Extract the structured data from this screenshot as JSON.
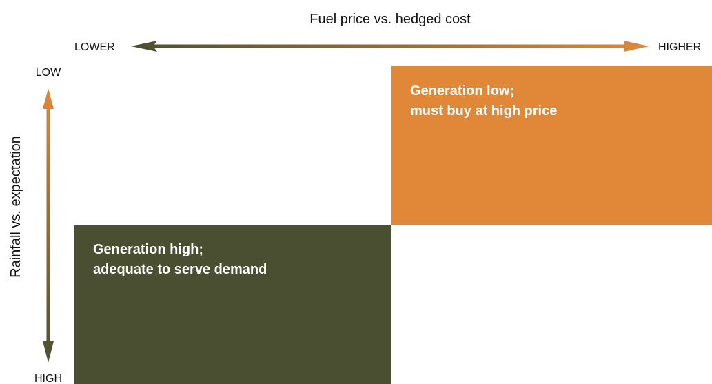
{
  "x_axis": {
    "title": "Fuel price vs. hedged cost",
    "low_label": "LOWER",
    "high_label": "HIGHER"
  },
  "y_axis": {
    "title": "Rainfall vs. expectation",
    "low_label": "LOW",
    "high_label": "HIGH"
  },
  "quadrants": [
    {
      "lines": [
        "Generation low;",
        "must buy at high price"
      ]
    },
    {
      "lines": [
        "Generation high;",
        "adequate to serve demand"
      ]
    }
  ]
}
